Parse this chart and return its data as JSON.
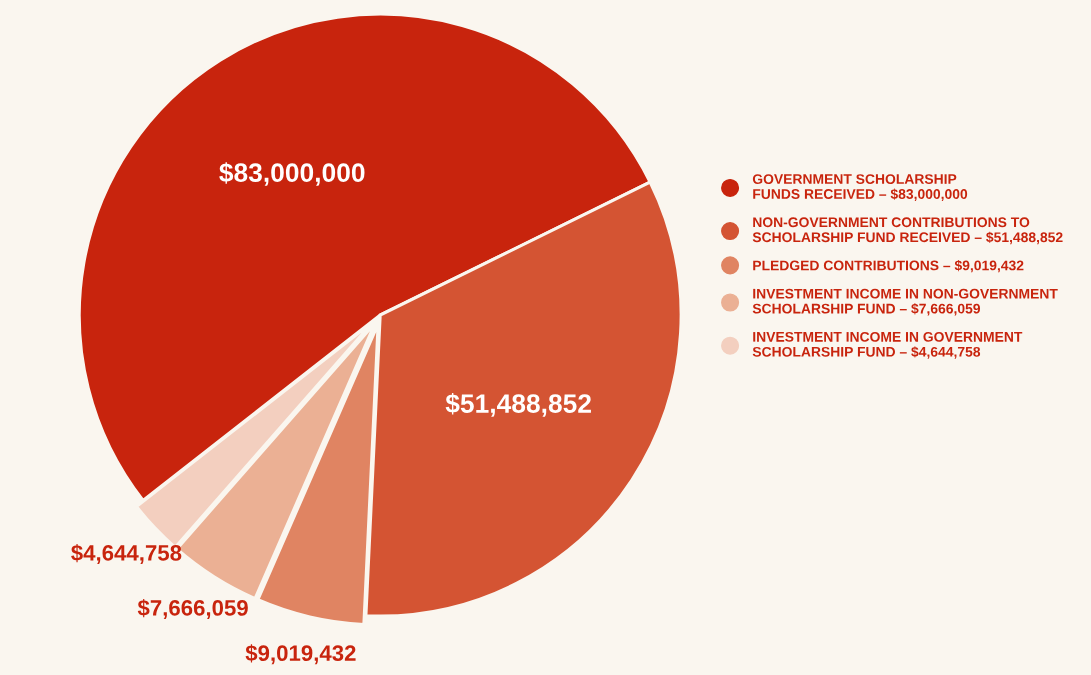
{
  "chart_data": {
    "type": "pie",
    "categories": [
      "GOVERNMENT SCHOLARSHIP\nFUNDS RECEIVED – $83,000,000",
      "NON-GOVERNMENT CONTRIBUTIONS TO\nSCHOLARSHIP FUND RECEIVED – $51,488,852",
      "PLEDGED CONTRIBUTIONS – $9,019,432",
      "INVESTMENT INCOME IN NON-GOVERNMENT\nSCHOLARSHIP FUND – $7,666,059",
      "INVESTMENT INCOME IN GOVERNMENT\nSCHOLARSHIP FUND – $4,644,758"
    ],
    "values": [
      83000000,
      51488852,
      9019432,
      7666059,
      4644758
    ],
    "value_labels": [
      "$83,000,000",
      "$51,488,852",
      "$9,019,432",
      "$7,666,059",
      "$4,644,758"
    ],
    "colors": [
      "#c8240d",
      "#d45433",
      "#e08462",
      "#ebb094",
      "#f3cfbf"
    ],
    "legend": "right"
  }
}
